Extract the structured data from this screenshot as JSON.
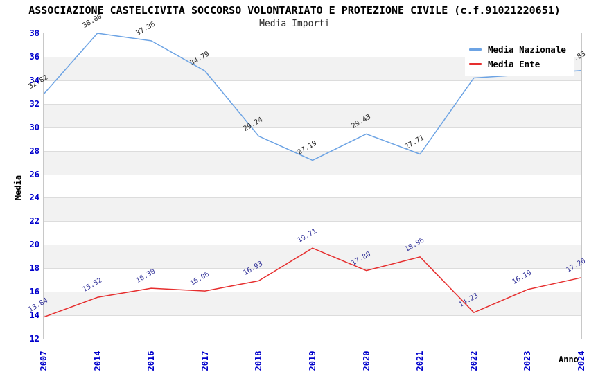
{
  "title": "ASSOCIAZIONE CASTELCIVITA SOCCORSO VOLONTARIATO E PROTEZIONE CIVILE (c.f.91021220651)",
  "subtitle": "Media Importi",
  "colors": {
    "background": "#ffffff",
    "tick_label": "#0000cc",
    "band_gray": "#f2f2f2",
    "grid_line": "#dcdcdc",
    "plot_border": "#c8c8c8",
    "title_text": "#000000",
    "axis_title_text": "#000000"
  },
  "legend": {
    "position": "top-right",
    "entries": [
      "Media Nazionale",
      "Media Ente"
    ]
  },
  "chart_data": {
    "type": "line",
    "x": [
      "2007",
      "2014",
      "2016",
      "2017",
      "2018",
      "2019",
      "2020",
      "2021",
      "2022",
      "2023",
      "2024"
    ],
    "xlabel": "Anno",
    "ylabel": "Media",
    "ylim": [
      12,
      38
    ],
    "ytick_step": 2,
    "grid": "horizontal alternating bands, gridline every 2 units",
    "legend_position": "top-right",
    "series": [
      {
        "name": "Media Nazionale",
        "color": "#6ca3e4",
        "label_color": "#2b2b2b",
        "values": [
          32.82,
          38.0,
          37.36,
          34.79,
          29.24,
          27.19,
          29.43,
          27.71,
          34.2,
          34.5,
          34.83
        ],
        "labels": [
          "32.82",
          "38.00",
          "37.36",
          "34.79",
          "29.24",
          "27.19",
          "29.43",
          "27.71",
          "",
          "",
          "34.83"
        ]
      },
      {
        "name": "Media Ente",
        "color": "#e62e2e",
        "label_color": "#333399",
        "values": [
          13.84,
          15.52,
          16.3,
          16.06,
          16.93,
          19.71,
          17.8,
          18.96,
          14.23,
          16.19,
          17.2
        ],
        "labels": [
          "13.84",
          "15.52",
          "16.30",
          "16.06",
          "16.93",
          "19.71",
          "17.80",
          "18.96",
          "14.23",
          "16.19",
          "17.20"
        ]
      }
    ]
  }
}
